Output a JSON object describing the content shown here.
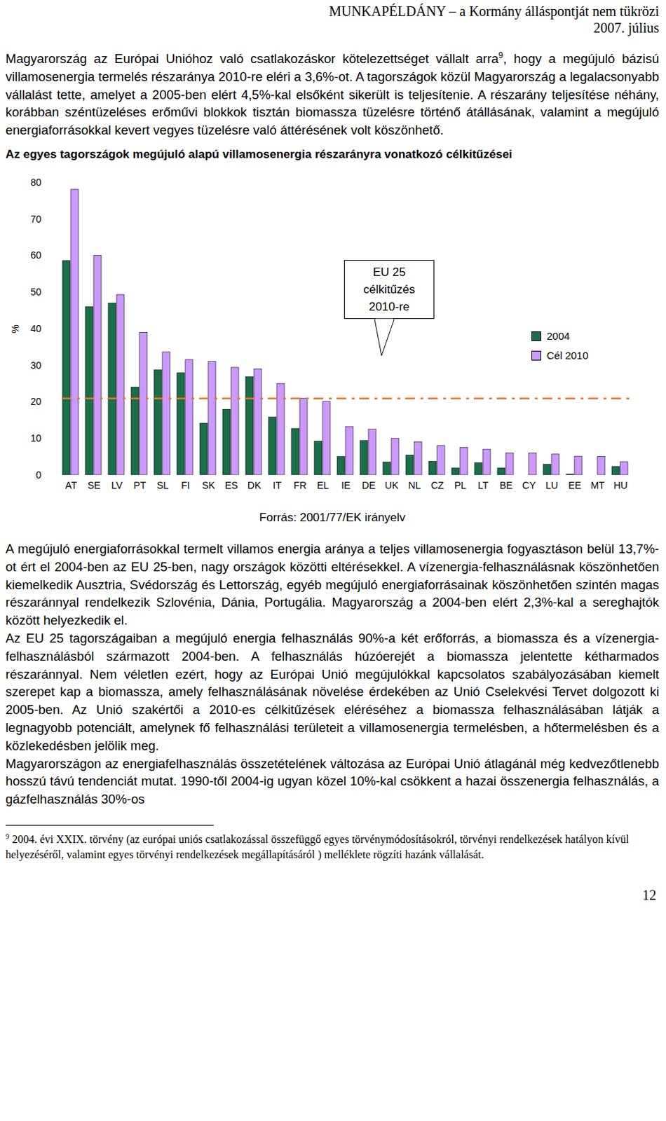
{
  "header": {
    "line1": "MUNKAPÉLDÁNY – a Kormány álláspontját nem tükrözi",
    "line2": "2007. július"
  },
  "intro": {
    "before_note": "Magyarország az Európai Unióhoz való csatlakozáskor kötelezettséget vállalt arra",
    "note_mark": "9",
    "after_note": ", hogy a megújuló bázisú villamosenergia termelés részaránya 2010-re eléri a 3,6%-ot. A tagországok közül Magyarország a legalacsonyabb vállalást tette, amelyet a 2005-ben elért 4,5%-kal elsőként sikerült is teljesítenie. A részarány teljesítése néhány, korábban széntüzeléses erőművi blokkok tisztán biomassza tüzelésre történő átállásának, valamint a megújuló energiaforrásokkal kevert vegyes tüzelésre való áttérésének volt köszönhető."
  },
  "chart_data": {
    "type": "bar",
    "title": "Az egyes tagországok megújuló alapú villamosenergia részarányra vonatkozó célkitűzései",
    "y_label": "%",
    "categories": [
      "AT",
      "SE",
      "LV",
      "PT",
      "SL",
      "FI",
      "SK",
      "ES",
      "DK",
      "IT",
      "FR",
      "EL",
      "IE",
      "DE",
      "UK",
      "NL",
      "CZ",
      "PL",
      "LT",
      "BE",
      "CY",
      "LU",
      "EE",
      "MT",
      "HU"
    ],
    "series": [
      {
        "name": "2004",
        "color": "#1b6e4a",
        "values": [
          58.6,
          46,
          47,
          24,
          28.7,
          27.9,
          14.1,
          17.9,
          26.8,
          15.8,
          12.7,
          9.2,
          5,
          9.4,
          3.5,
          5.4,
          3.7,
          1.9,
          3.3,
          1.9,
          0,
          2.9,
          0.2,
          0,
          2.3
        ]
      },
      {
        "name": "Cél 2010",
        "color": "#cc99ff",
        "values": [
          78.1,
          60,
          49.3,
          39,
          33.6,
          31.5,
          31,
          29.4,
          29,
          25,
          21,
          20.1,
          13.2,
          12.5,
          10,
          9,
          8,
          7.5,
          7,
          6,
          6,
          5.7,
          5.1,
          5,
          3.6
        ]
      }
    ],
    "ylim": [
      0,
      80
    ],
    "yticks": [
      0,
      10,
      20,
      30,
      40,
      50,
      60,
      70,
      80
    ],
    "grid": false,
    "legend": "right",
    "reference_line": {
      "value": 21,
      "color": "#e8762b",
      "label_lines": [
        "EU 25",
        "célkitűzés",
        "2010-re"
      ]
    }
  },
  "source": "Forrás: 2001/77/EK irányelv",
  "paragraphs": [
    "A megújuló energiaforrásokkal termelt villamos energia aránya a teljes villamosenergia fogyasztáson belül 13,7%-ot ért el 2004-ben az EU 25-ben, nagy országok közötti eltérésekkel. A vízenergia-felhasználásnak köszönhetően kiemelkedik Ausztria, Svédország és Lettország, egyéb megújuló energiaforrásainak köszönhetően szintén magas részaránnyal rendelkezik Szlovénia, Dánia, Portugália. Magyarország a 2004-ben elért 2,3%-kal a sereghajtók között helyezkedik el.",
    "Az EU 25 tagországaiban a megújuló energia felhasználás 90%-a két erőforrás, a biomassza és a vízenergia-felhasználásból származott 2004-ben. A felhasználás húzóerejét a biomassza jelentette kétharmados részaránnyal. Nem véletlen ezért, hogy az Európai Unió megújulókkal kapcsolatos szabályozásában kiemelt szerepet kap a biomassza, amely felhasználásának növelése érdekében az Unió Cselekvési Tervet dolgozott ki 2005-ben. Az Unió szakértői a 2010-es célkitűzések eléréséhez a biomassza felhasználásában látják a legnagyobb potenciált, amelynek fő felhasználási területeit a villamosenergia termelésben, a hőtermelésben és a közlekedésben jelölik meg.",
    "Magyarországon az energiafelhasználás összetételének változása az Európai Unió átlagánál még kedvezőtlenebb hosszú távú tendenciát mutat. 1990-től 2004-ig ugyan közel 10%-kal csökkent a hazai összenergia felhasználás, a gázfelhasználás 30%-os"
  ],
  "footnote": {
    "mark": "9",
    "text": "2004. évi XXIX. törvény (az európai uniós csatlakozással összefüggő egyes törvénymódosításokról, törvényi rendelkezések hatályon kívül helyezéséről, valamint egyes törvényi rendelkezések megállapításáról ) melléklete rögzíti hazánk vállalását."
  },
  "page_number": "12"
}
